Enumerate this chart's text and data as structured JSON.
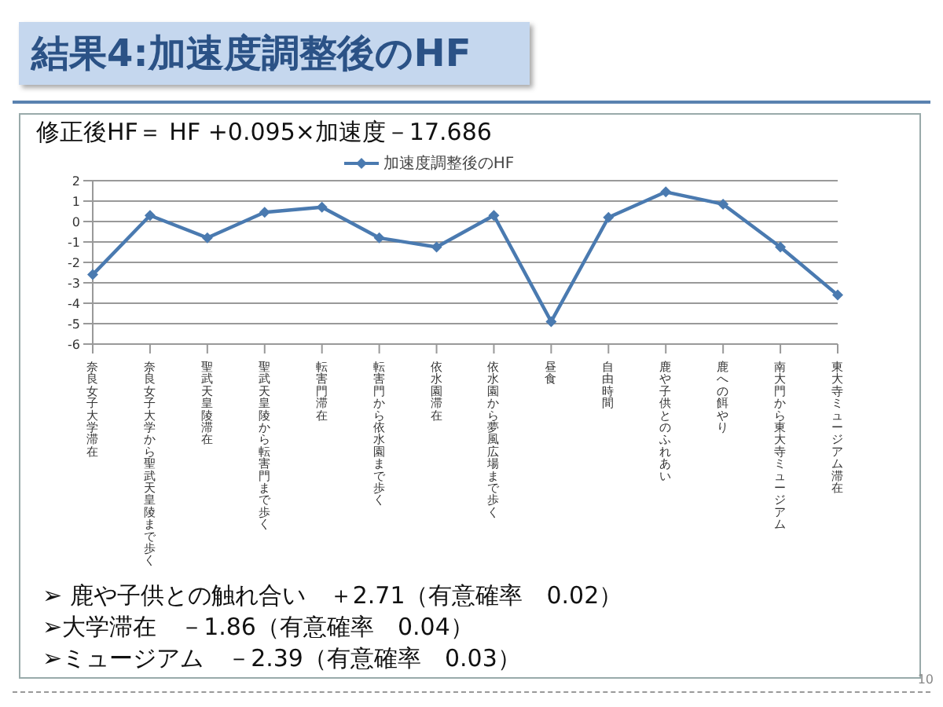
{
  "chart_data": {
    "type": "line",
    "title": "結果4:加速度調整後のHF",
    "subtitle": "修正後HF＝ HF +0.095×加速度－17.686",
    "categories": [
      "奈良女子大学滞在",
      "奈良女子大学から聖武天皇陵まで歩く",
      "聖武天皇陵滞在",
      "聖武天皇陵から転害門まで歩く",
      "転害門滞在",
      "転害門から依水園まで歩く",
      "依水園滞在",
      "依水園から夢風広場まで歩く",
      "昼食",
      "自由時間",
      "鹿や子供とのふれあい",
      "鹿への餌やり",
      "南大門から東大寺ミュージアム",
      "東大寺ミュージアム滞在"
    ],
    "series": [
      {
        "name": "加速度調整後のHF",
        "color": "#4a7ab0",
        "values": [
          -2.6,
          0.3,
          -0.8,
          0.45,
          0.7,
          -0.8,
          -1.25,
          0.3,
          -4.9,
          0.2,
          1.45,
          0.85,
          -1.25,
          -3.6
        ]
      }
    ],
    "ylim": [
      -6,
      2
    ],
    "yticks": [
      -6,
      -5,
      -4,
      -3,
      -2,
      -1,
      0,
      1,
      2
    ],
    "grid": "y",
    "legend": "top",
    "marker": "diamond",
    "line_style": "solid",
    "annotations": [
      "➢ 鹿や子供との触れ合い　＋2.71（有意確率　0.02）",
      "➢大学滞在　－1.86（有意確率　0.04）",
      "➢ミュージアム　－2.39（有意確率　0.03）",
      "10"
    ]
  }
}
